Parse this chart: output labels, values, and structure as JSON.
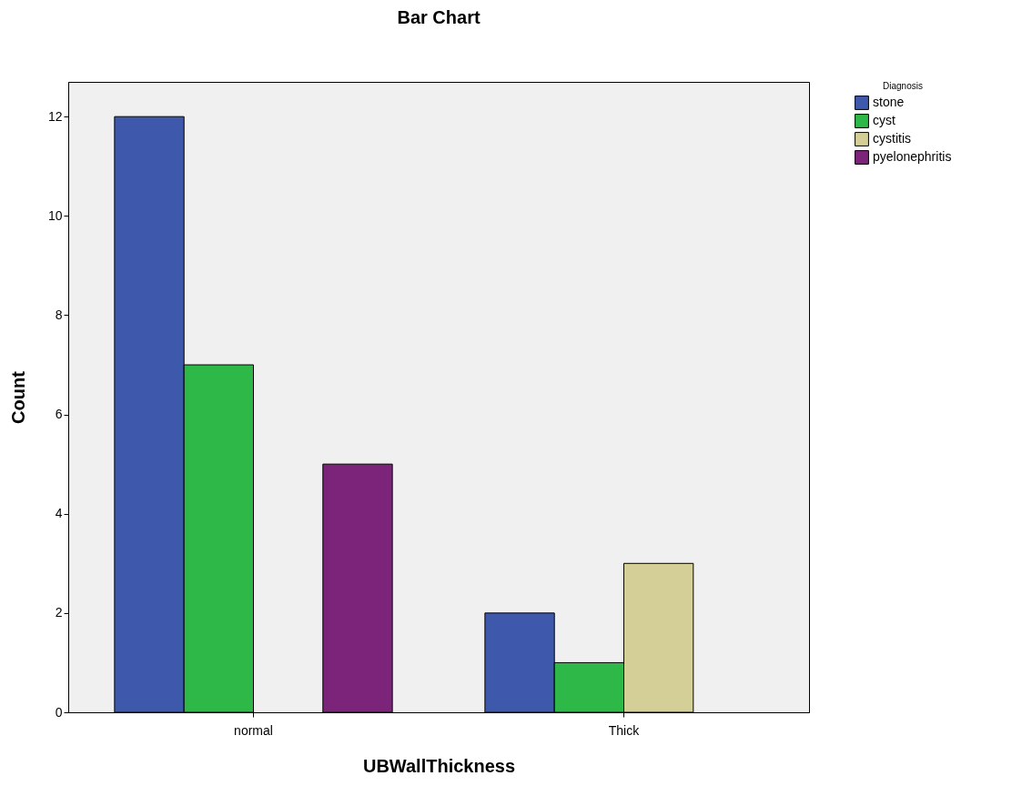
{
  "chart_data": {
    "type": "bar",
    "title": "Bar Chart",
    "xlabel": "UBWallThickness",
    "ylabel": "Count",
    "legend_title": "Diagnosis",
    "legend": "top right",
    "categories": [
      "normal",
      "Thick"
    ],
    "series": [
      {
        "name": "stone",
        "color": "#3e58ac",
        "values": [
          12,
          2
        ]
      },
      {
        "name": "cyst",
        "color": "#2eb848",
        "values": [
          7,
          1
        ]
      },
      {
        "name": "cystitis",
        "color": "#d4cf97",
        "values": [
          null,
          3
        ]
      },
      {
        "name": "pyelonephritis",
        "color": "#7b2479",
        "values": [
          5,
          null
        ]
      }
    ],
    "ylim": [
      0,
      12.7
    ],
    "yticks": [
      0,
      2,
      4,
      6,
      8,
      10,
      12
    ]
  }
}
